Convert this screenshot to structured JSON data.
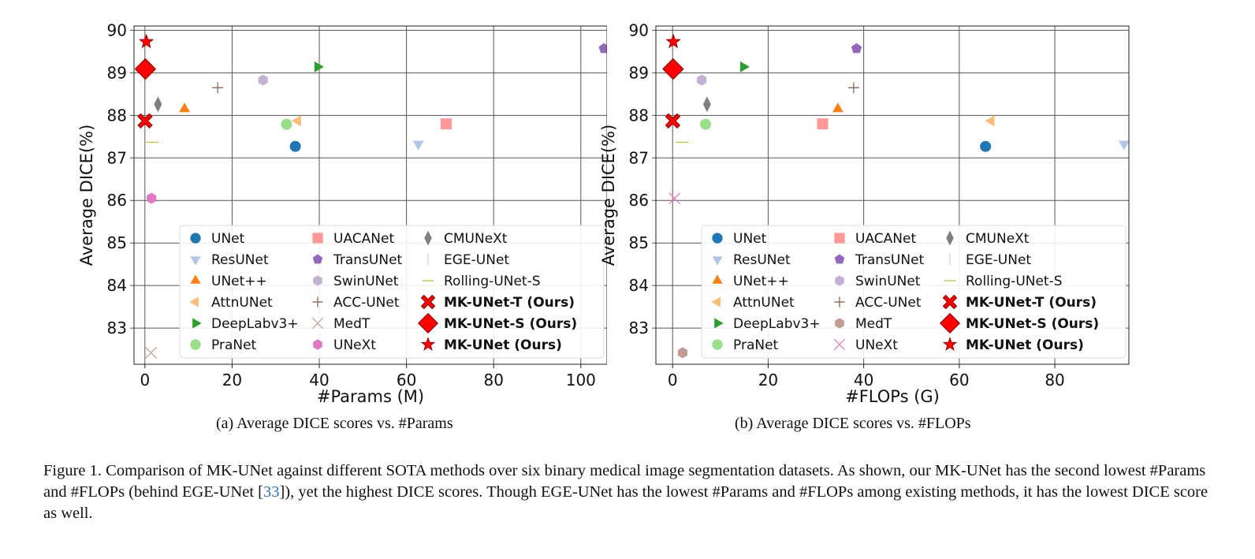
{
  "styles": {
    "UNet": {
      "marker": "circle",
      "color": "#1f77b4"
    },
    "ResUNet": {
      "marker": "tri-down",
      "color": "#aec7e8"
    },
    "UNet++": {
      "marker": "tri-up",
      "color": "#ff7f0e"
    },
    "AttnUNet": {
      "marker": "tri-left",
      "color": "#ffbb78"
    },
    "DeepLabv3+": {
      "marker": "tri-right",
      "color": "#2ca02c"
    },
    "PraNet": {
      "marker": "circle",
      "color": "#98df8a"
    },
    "UACANet": {
      "marker": "square",
      "color": "#ff9896"
    },
    "TransUNet": {
      "marker": "pentagon",
      "color": "#9467bd"
    },
    "SwinUNet": {
      "marker": "hexagon",
      "color": "#c5b0d5"
    },
    "ACC-UNet": {
      "marker": "plus",
      "color": "#8c564b"
    },
    "CMUNeXt": {
      "marker": "thin-diamond",
      "color": "#7f7f7f"
    },
    "EGE-UNet": {
      "marker": "vline",
      "color": "#c7c7c7"
    },
    "Rolling-UNet-S": {
      "marker": "hline",
      "color": "#bcbd22"
    },
    "MK-UNet-T (Ours)": {
      "marker": "bigX",
      "color": "#ff0000"
    },
    "MK-UNet-S (Ours)": {
      "marker": "diamond",
      "color": "#ff0000"
    },
    "MK-UNet (Ours)": {
      "marker": "star",
      "color": "#ff0000"
    }
  },
  "chart_data": [
    {
      "type": "scatter",
      "xlabel": "#Params (M)",
      "ylabel": "Average DICE(%)",
      "xlim": [
        -2.5,
        106
      ],
      "ylim": [
        82.15,
        90.1
      ],
      "xticks": [
        0,
        20,
        40,
        60,
        80,
        100
      ],
      "yticks": [
        83,
        84,
        85,
        86,
        87,
        88,
        89,
        90
      ],
      "grid": true,
      "legend_placement": "lower-right",
      "subcaption": "(a) Average DICE scores vs. #Params",
      "legend": [
        "UNet",
        "ResUNet",
        "UNet++",
        "AttnUNet",
        "DeepLabv3+",
        "PraNet",
        "UACANet",
        "TransUNet",
        "SwinUNet",
        "ACC-UNet",
        "MedT",
        "UNeXt",
        "CMUNeXt",
        "EGE-UNet",
        "Rolling-UNet-S",
        "MK-UNet-T (Ours)",
        "MK-UNet-S (Ours)",
        "MK-UNet (Ours)"
      ],
      "overrides": {
        "MedT": {
          "marker": "x",
          "color": "#c49c94"
        },
        "UNeXt": {
          "marker": "hexagon",
          "color": "#e377c2"
        }
      },
      "points": [
        {
          "name": "UNet",
          "x": 34.5,
          "y": 87.27
        },
        {
          "name": "ResUNet",
          "x": 62.7,
          "y": 87.33
        },
        {
          "name": "UNet++",
          "x": 9.1,
          "y": 88.15
        },
        {
          "name": "AttnUNet",
          "x": 35.1,
          "y": 87.87
        },
        {
          "name": "DeepLabv3+",
          "x": 39.6,
          "y": 89.14
        },
        {
          "name": "PraNet",
          "x": 32.5,
          "y": 87.79
        },
        {
          "name": "UACANet",
          "x": 69.1,
          "y": 87.8
        },
        {
          "name": "TransUNet",
          "x": 105.3,
          "y": 89.57
        },
        {
          "name": "SwinUNet",
          "x": 27.1,
          "y": 88.83
        },
        {
          "name": "ACC-UNet",
          "x": 16.7,
          "y": 88.65
        },
        {
          "name": "MedT",
          "x": 1.4,
          "y": 82.42
        },
        {
          "name": "UNeXt",
          "x": 1.5,
          "y": 86.05
        },
        {
          "name": "CMUNeXt",
          "x": 3.0,
          "y": 88.26
        },
        {
          "name": "Rolling-UNet-S",
          "x": 1.7,
          "y": 87.37
        },
        {
          "name": "MK-UNet-T (Ours)",
          "x": 0.03,
          "y": 87.87
        },
        {
          "name": "MK-UNet-S (Ours)",
          "x": 0.1,
          "y": 89.09
        },
        {
          "name": "MK-UNet (Ours)",
          "x": 0.32,
          "y": 89.73
        }
      ]
    },
    {
      "type": "scatter",
      "xlabel": "#FLOPs (G)",
      "ylabel": "Average DICE(%)",
      "xlim": [
        -3.5,
        95.5
      ],
      "ylim": [
        82.15,
        90.1
      ],
      "xticks": [
        0,
        20,
        40,
        60,
        80
      ],
      "yticks": [
        83,
        84,
        85,
        86,
        87,
        88,
        89,
        90
      ],
      "grid": true,
      "legend_placement": "lower-right",
      "subcaption": "(b) Average DICE scores vs. #FLOPs",
      "legend": [
        "UNet",
        "ResUNet",
        "UNet++",
        "AttnUNet",
        "DeepLabv3+",
        "PraNet",
        "UACANet",
        "TransUNet",
        "SwinUNet",
        "ACC-UNet",
        "MedT",
        "UNeXt",
        "CMUNeXt",
        "EGE-UNet",
        "Rolling-UNet-S",
        "MK-UNet-T (Ours)",
        "MK-UNet-S (Ours)",
        "MK-UNet (Ours)"
      ],
      "overrides": {
        "MedT": {
          "marker": "hexagon",
          "color": "#c49c94"
        },
        "UNeXt": {
          "marker": "x",
          "color": "#e377c2"
        }
      },
      "points": [
        {
          "name": "UNet",
          "x": 65.5,
          "y": 87.27
        },
        {
          "name": "ResUNet",
          "x": 94.5,
          "y": 87.33
        },
        {
          "name": "UNet++",
          "x": 34.6,
          "y": 88.15
        },
        {
          "name": "AttnUNet",
          "x": 66.7,
          "y": 87.87
        },
        {
          "name": "DeepLabv3+",
          "x": 14.8,
          "y": 89.14
        },
        {
          "name": "PraNet",
          "x": 6.9,
          "y": 87.79
        },
        {
          "name": "UACANet",
          "x": 31.4,
          "y": 87.8
        },
        {
          "name": "TransUNet",
          "x": 38.5,
          "y": 89.57
        },
        {
          "name": "SwinUNet",
          "x": 6.1,
          "y": 88.83
        },
        {
          "name": "ACC-UNet",
          "x": 37.9,
          "y": 88.65
        },
        {
          "name": "MedT",
          "x": 2.1,
          "y": 82.42
        },
        {
          "name": "UNeXt",
          "x": 0.4,
          "y": 86.05
        },
        {
          "name": "CMUNeXt",
          "x": 7.2,
          "y": 88.26
        },
        {
          "name": "Rolling-UNet-S",
          "x": 2.0,
          "y": 87.37
        },
        {
          "name": "MK-UNet-T (Ours)",
          "x": 0.03,
          "y": 87.87
        },
        {
          "name": "MK-UNet-S (Ours)",
          "x": 0.1,
          "y": 89.09
        },
        {
          "name": "MK-UNet (Ours)",
          "x": 0.15,
          "y": 89.73
        }
      ]
    }
  ],
  "caption": {
    "text_1": "Figure 1. Comparison of MK-UNet against different SOTA methods over six binary medical image segmentation datasets. As shown, our MK-UNet has the second lowest #Params and #FLOPs (behind EGE-UNet [",
    "ref": "33",
    "text_2": "]), yet the highest DICE scores. Though EGE-UNet has the lowest #Params and #FLOPs among existing methods, it has the lowest DICE score as well."
  }
}
